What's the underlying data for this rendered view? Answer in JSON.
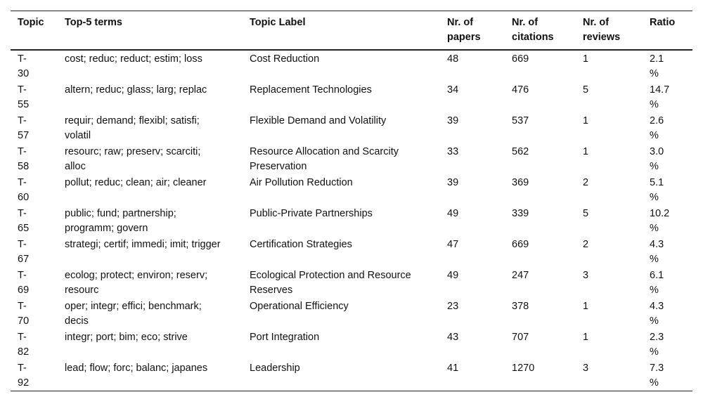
{
  "table": {
    "columns": [
      "Topic",
      "Top-5 terms",
      "Topic Label",
      "Nr. of papers",
      "Nr. of citations",
      "Nr. of reviews",
      "Ratio"
    ],
    "rows": [
      [
        "T-30",
        "cost; reduc; reduct; estim; loss",
        "Cost Reduction",
        48,
        669,
        1,
        "2.1 %"
      ],
      [
        "T-55",
        "altern; reduc; glass; larg; replac",
        "Replacement Technologies",
        34,
        476,
        5,
        "14.7 %"
      ],
      [
        "T-57",
        "requir; demand; flexibl; satisfi; volatil",
        "Flexible Demand and Volatility",
        39,
        537,
        1,
        "2.6 %"
      ],
      [
        "T-58",
        "resourc; raw; preserv; scarciti; alloc",
        "Resource Allocation and Scarcity Preservation",
        33,
        562,
        1,
        "3.0 %"
      ],
      [
        "T-60",
        "pollut; reduc; clean; air; cleaner",
        "Air Pollution Reduction",
        39,
        369,
        2,
        "5.1 %"
      ],
      [
        "T-65",
        "public; fund; partnership; programm; govern",
        "Public-Private Partnerships",
        49,
        339,
        5,
        "10.2 %"
      ],
      [
        "T-67",
        "strategi; certif; immedi; imit; trigger",
        "Certification Strategies",
        47,
        669,
        2,
        "4.3 %"
      ],
      [
        "T-69",
        "ecolog; protect; environ; reserv; resourc",
        "Ecological Protection and Resource Reserves",
        49,
        247,
        3,
        "6.1 %"
      ],
      [
        "T-70",
        "oper; integr; effici; benchmark; decis",
        "Operational Efficiency",
        23,
        378,
        1,
        "4.3 %"
      ],
      [
        "T-82",
        "integr; port; bim; eco; strive",
        "Port Integration",
        43,
        707,
        1,
        "2.3 %"
      ],
      [
        "T-92",
        "lead; flow; forc; balanc; japanes",
        "Leadership",
        41,
        1270,
        3,
        "7.3 %"
      ]
    ]
  }
}
